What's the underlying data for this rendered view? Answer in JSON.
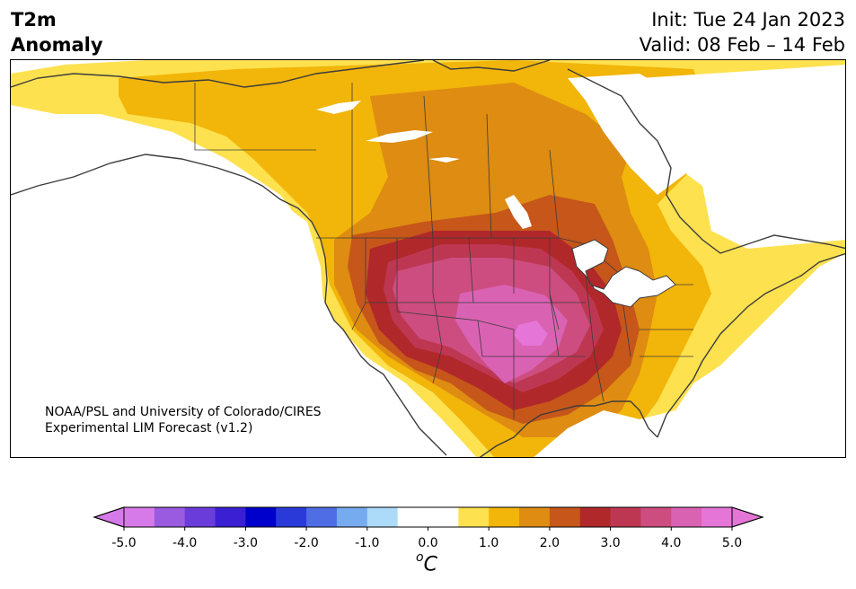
{
  "header": {
    "variable_line1": "T2m",
    "variable_line2": "Anomaly",
    "init": "Init: Tue 24 Jan 2023",
    "valid": "Valid: 08 Feb – 14 Feb"
  },
  "map": {
    "credit_line1": "NOAA/PSL and University of Colorado/CIRES",
    "credit_line2": "Experimental LIM Forecast (v1.2)"
  },
  "colorbar": {
    "ticks": [
      "-5.0",
      "-4.0",
      "-3.0",
      "-2.0",
      "-1.0",
      "0.0",
      "1.0",
      "2.0",
      "3.0",
      "4.0",
      "5.0"
    ],
    "unit_base": "C",
    "unit_sup": "o",
    "colors": [
      "#d77ae9",
      "#9a5be0",
      "#6a3ddb",
      "#3b1fd3",
      "#0000cc",
      "#2a3ad9",
      "#4f6ee6",
      "#76abf0",
      "#acdbfa",
      "#ffffff",
      "#ffffff",
      "#fde14f",
      "#f2b509",
      "#de8c12",
      "#c6561a",
      "#b1282b",
      "#be3752",
      "#cd4d80",
      "#da62b3",
      "#e575d7"
    ]
  }
}
